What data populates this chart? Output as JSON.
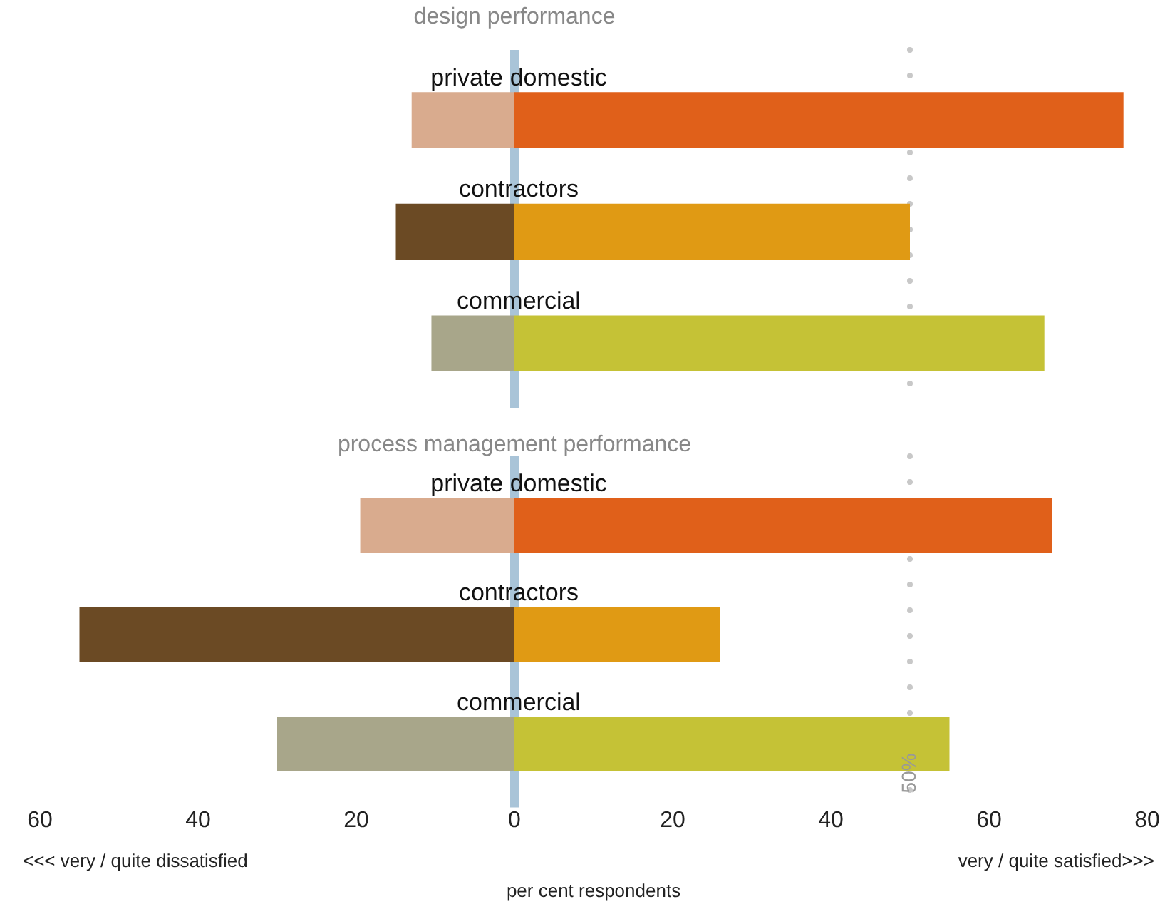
{
  "chart_data": [
    {
      "type": "bar",
      "orientation": "horizontal",
      "stacked": true,
      "title": "design performance",
      "categories": [
        "private domestic",
        "contractors",
        "commercial"
      ],
      "tick_labels": false,
      "grid": false,
      "legend": false,
      "xlim": [
        -60,
        80
      ],
      "series": [
        {
          "values": [
            -13,
            -15,
            -10.5
          ],
          "colors": [
            "#d9ab8e",
            "#6b4a24",
            "#a8a68a"
          ]
        },
        {
          "values": [
            77,
            50,
            67
          ],
          "colors": [
            "#e0601a",
            "#e09a14",
            "#c5c236"
          ]
        }
      ],
      "ref_lines": [
        {
          "axis": "x",
          "value": 0,
          "color": "#a9c4d8",
          "line_style": "solid"
        },
        {
          "axis": "x",
          "value": 50,
          "color": "#c8c8c8",
          "line_style": "dotted"
        }
      ]
    },
    {
      "type": "bar",
      "orientation": "horizontal",
      "stacked": true,
      "title": "process management performance",
      "categories": [
        "private domestic",
        "contractors",
        "commercial"
      ],
      "tick_labels": "x",
      "grid": false,
      "legend": false,
      "xlim": [
        -60,
        80
      ],
      "xticks": [
        {
          "value": -60,
          "label": "60"
        },
        {
          "value": -40,
          "label": "40"
        },
        {
          "value": -20,
          "label": "20"
        },
        0,
        20,
        40,
        60,
        80
      ],
      "xlabel": "per cent respondents",
      "series": [
        {
          "values": [
            -19.5,
            -55,
            -30
          ],
          "colors": [
            "#d9ab8e",
            "#6b4a24",
            "#a8a68a"
          ]
        },
        {
          "values": [
            68,
            26,
            55
          ],
          "colors": [
            "#e0601a",
            "#e09a14",
            "#c5c236"
          ]
        }
      ],
      "ref_lines": [
        {
          "axis": "x",
          "value": 0,
          "color": "#a9c4d8",
          "line_style": "solid"
        },
        {
          "axis": "x",
          "value": 50,
          "label": "50%",
          "color": "#c8c8c8",
          "line_style": "dotted"
        }
      ],
      "annotations": [
        "<<< very / quite dissatisfied",
        "very / quite satisfied>>>"
      ]
    }
  ]
}
